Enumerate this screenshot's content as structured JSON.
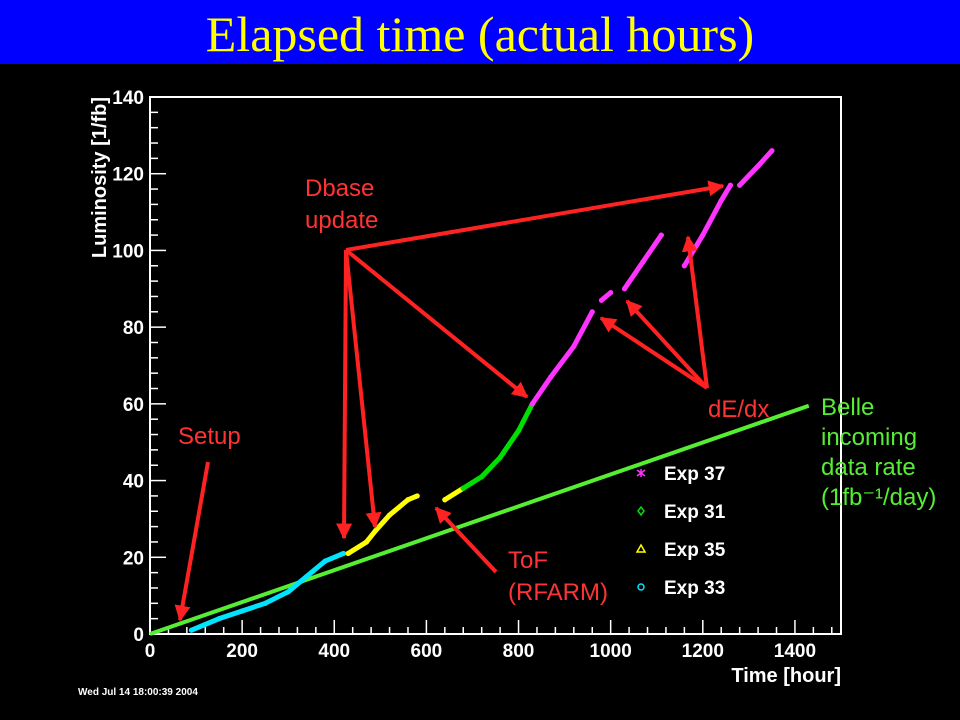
{
  "slide": {
    "title": "Elapsed time (actual hours)"
  },
  "chart_data": {
    "type": "scatter",
    "xlabel": "Time [hour]",
    "ylabel": "Luminosity [1/fb]",
    "xlim": [
      0,
      1500
    ],
    "ylim": [
      0,
      140
    ],
    "x_ticks": [
      0,
      200,
      400,
      600,
      800,
      1000,
      1200,
      1400
    ],
    "y_ticks": [
      0,
      20,
      40,
      60,
      80,
      100,
      120,
      140
    ],
    "grid": false,
    "legend_position": "bottom-right",
    "timestamp": "Wed Jul 14 18:00:39 2004",
    "series": [
      {
        "name": "Exp 33",
        "color": "#00e5ff",
        "marker": "circle",
        "segments": [
          [
            [
              90,
              1
            ],
            [
              150,
              4
            ],
            [
              200,
              6
            ],
            [
              250,
              8
            ],
            [
              300,
              11
            ],
            [
              340,
              15
            ],
            [
              380,
              19
            ],
            [
              420,
              21
            ]
          ]
        ]
      },
      {
        "name": "Exp 35",
        "color": "#ffff00",
        "marker": "triangle",
        "segments": [
          [
            [
              430,
              21
            ],
            [
              470,
              24
            ],
            [
              490,
              27
            ],
            [
              520,
              31
            ],
            [
              560,
              35
            ],
            [
              580,
              36
            ]
          ],
          [
            [
              640,
              35
            ],
            [
              680,
              38
            ]
          ]
        ]
      },
      {
        "name": "Exp 31",
        "color": "#00e000",
        "marker": "diamond",
        "segments": [
          [
            [
              680,
              38
            ],
            [
              720,
              41
            ],
            [
              760,
              46
            ],
            [
              800,
              53
            ],
            [
              830,
              60
            ]
          ]
        ]
      },
      {
        "name": "Exp 37",
        "color": "#ff33ff",
        "marker": "star",
        "segments": [
          [
            [
              830,
              60
            ],
            [
              870,
              67
            ],
            [
              920,
              75
            ],
            [
              960,
              84
            ]
          ],
          [
            [
              980,
              87
            ],
            [
              1000,
              89
            ]
          ],
          [
            [
              1030,
              90
            ],
            [
              1070,
              97
            ],
            [
              1110,
              104
            ]
          ],
          [
            [
              1160,
              96
            ],
            [
              1200,
              104
            ],
            [
              1240,
              113
            ],
            [
              1260,
              117
            ]
          ],
          [
            [
              1280,
              117
            ],
            [
              1320,
              122
            ],
            [
              1350,
              126
            ]
          ]
        ]
      }
    ],
    "reference_line": {
      "label": "Belle incoming data rate (1fb⁻¹/day)",
      "color": "#55ee33",
      "from": [
        0,
        0
      ],
      "to": [
        1430,
        59.5
      ]
    },
    "annotations": [
      {
        "lines": [
          "Setup"
        ],
        "color": "#ff3333"
      },
      {
        "lines": [
          "Dbase",
          "update"
        ],
        "color": "#ff3333"
      },
      {
        "lines": [
          "dE/dx"
        ],
        "color": "#ff3333"
      },
      {
        "lines": [
          "ToF",
          "(RFARM)"
        ],
        "color": "#ff3333"
      },
      {
        "lines": [
          "Belle",
          "incoming",
          "data rate",
          "(1fb⁻¹/day)"
        ],
        "color": "#55ee33"
      }
    ]
  }
}
